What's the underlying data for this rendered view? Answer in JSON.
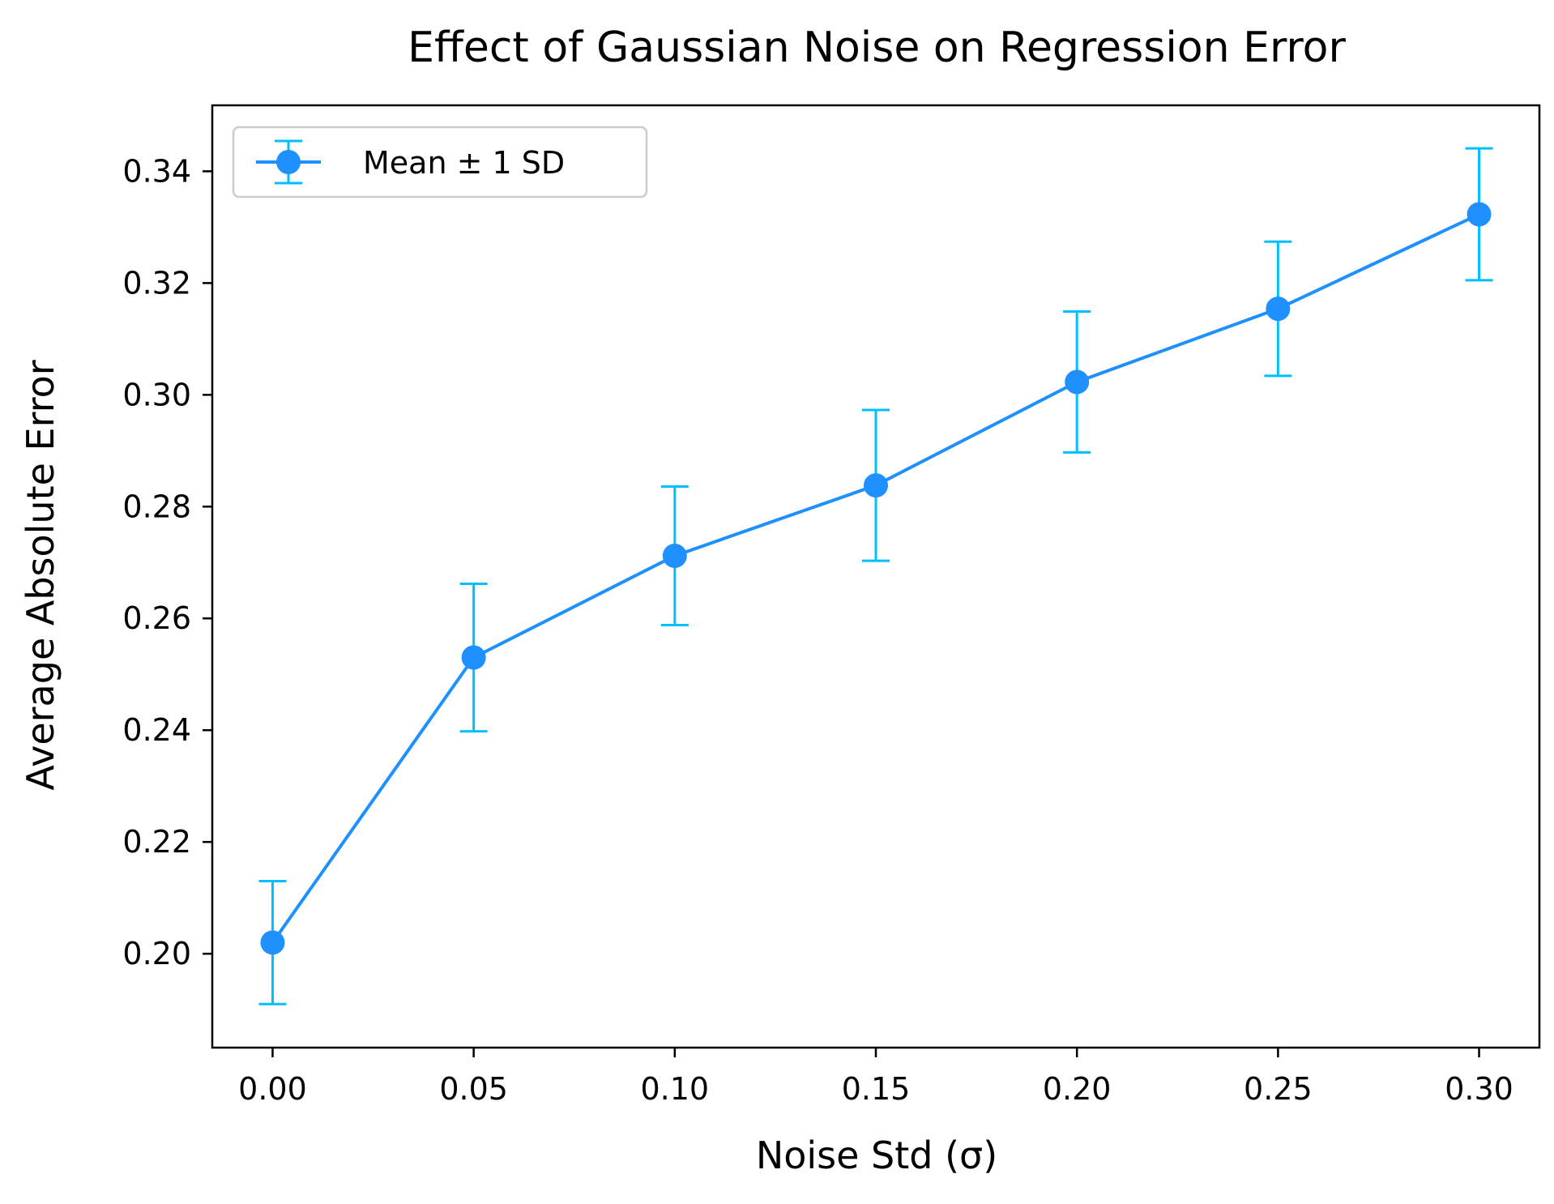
{
  "chart_data": {
    "type": "line",
    "title": "Effect of Gaussian Noise on Regression Error",
    "xlabel": "Noise Std (σ)",
    "ylabel": "Average Absolute Error",
    "x": [
      0.0,
      0.05,
      0.1,
      0.15,
      0.2,
      0.25,
      0.3
    ],
    "series": [
      {
        "name": "Mean ± 1 SD",
        "values": [
          0.202,
          0.253,
          0.2712,
          0.2838,
          0.3023,
          0.3154,
          0.3323
        ],
        "error": [
          0.011,
          0.0132,
          0.0124,
          0.0135,
          0.0126,
          0.012,
          0.0118
        ],
        "line_color": "#1e90ff",
        "errorbar_color": "#00bfff",
        "marker": "circle"
      }
    ],
    "xlim": [
      -0.015,
      0.315
    ],
    "ylim": [
      0.1832,
      0.3518
    ],
    "x_ticks": [
      "0.00",
      "0.05",
      "0.10",
      "0.15",
      "0.20",
      "0.25",
      "0.30"
    ],
    "y_ticks": [
      "0.20",
      "0.22",
      "0.24",
      "0.26",
      "0.28",
      "0.30",
      "0.32",
      "0.34"
    ],
    "grid": false,
    "legend_position": "top-left"
  }
}
